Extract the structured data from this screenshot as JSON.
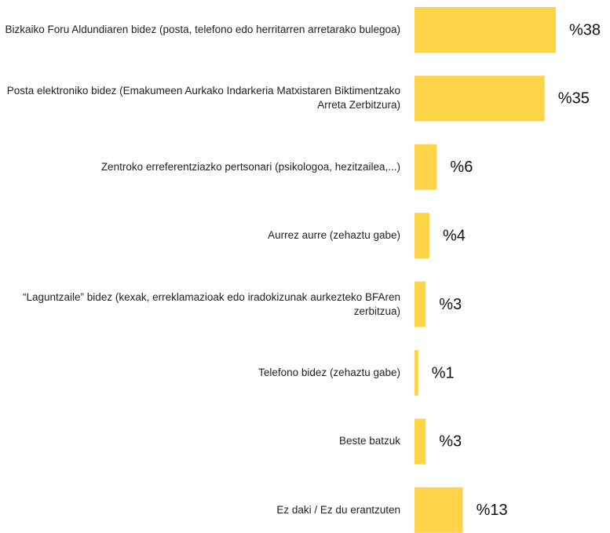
{
  "chart_data": {
    "type": "bar",
    "orientation": "horizontal",
    "categories": [
      "Bizkaiko Foru Aldundiaren bidez (posta, telefono edo herritarren arretarako bulegoa)",
      "Posta elektroniko bidez (Emakumeen Aurkako Indarkeria Matxistaren Biktimentzako Arreta Zerbitzura)",
      "Zentroko erreferentziazko pertsonari (psikologoa, hezitzailea,...)",
      "Aurrez aurre (zehaztu gabe)",
      "“Laguntzaile” bidez (kexak, erreklamazioak edo iradokizunak aurkezteko BFAren zerbitzua)",
      "Telefono bidez (zehaztu gabe)",
      "Beste batzuk",
      "Ez daki / Ez du erantzuten"
    ],
    "values": [
      38,
      35,
      6,
      4,
      3,
      1,
      3,
      13
    ],
    "value_labels": [
      "%38",
      "%35",
      "%6",
      "%4",
      "%3",
      "%1",
      "%3",
      "%13"
    ],
    "color": "#fdd447"
  }
}
